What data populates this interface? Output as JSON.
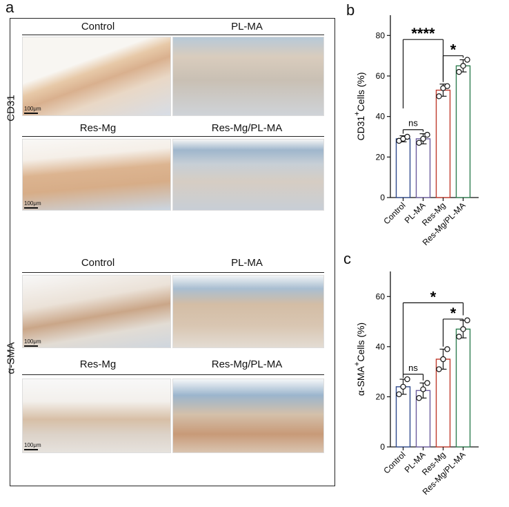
{
  "panels": {
    "a": "a",
    "b": "b",
    "c": "c"
  },
  "histology": {
    "rows": [
      {
        "stain": "CD31",
        "top_labels": [
          "Control",
          "PL-MA"
        ],
        "bottom_labels": [
          "Res-Mg",
          "Res-Mg/PL-MA"
        ]
      },
      {
        "stain": "α-SMA",
        "top_labels": [
          "Control",
          "PL-MA"
        ],
        "bottom_labels": [
          "Res-Mg",
          "Res-Mg/PL-MA"
        ]
      }
    ],
    "scale_bar": "100μm"
  },
  "colors": {
    "control": "#2f4a8c",
    "plma": "#6a5b9c",
    "resmg": "#c0392b",
    "resmg_plma": "#2e7d4f"
  },
  "chart_data": [
    {
      "type": "bar",
      "panel": "b",
      "categories": [
        "Control",
        "PL-MA",
        "Res-Mg",
        "Res-Mg/PL-MA"
      ],
      "values": [
        29,
        29,
        53,
        65
      ],
      "errors": [
        1.5,
        2.5,
        3,
        3
      ],
      "points": [
        [
          28,
          29,
          30
        ],
        [
          27,
          29,
          31
        ],
        [
          50,
          54,
          55
        ],
        [
          62,
          65,
          68
        ]
      ],
      "ylabel_main": "CD31",
      "ylabel_sup": "+",
      "ylabel_tail": "Cells (%)",
      "ylim": [
        0,
        90
      ],
      "yticks": [
        0,
        20,
        40,
        60,
        80
      ],
      "significance": [
        {
          "from": 0,
          "to": 1,
          "label": "ns"
        },
        {
          "from": 2,
          "to": 3,
          "label": "*"
        },
        {
          "from": 0,
          "to": 2,
          "label": "****"
        }
      ]
    },
    {
      "type": "bar",
      "panel": "c",
      "categories": [
        "Control",
        "PL-MA",
        "Res-Mg",
        "Res-Mg/PL-MA"
      ],
      "values": [
        24,
        22.5,
        35,
        47
      ],
      "errors": [
        3,
        3,
        4,
        3.5
      ],
      "points": [
        [
          21,
          24,
          27
        ],
        [
          19.5,
          23,
          25.5
        ],
        [
          31,
          35,
          39
        ],
        [
          44,
          47,
          50.5
        ]
      ],
      "ylabel_main": "α-SMA",
      "ylabel_sup": "+",
      "ylabel_tail": "Cells (%)",
      "ylim": [
        0,
        70
      ],
      "yticks": [
        0,
        20,
        40,
        60
      ],
      "significance": [
        {
          "from": 0,
          "to": 1,
          "label": "ns"
        },
        {
          "from": 2,
          "to": 3,
          "label": "*"
        },
        {
          "from": 0,
          "to": 3,
          "label": "*"
        }
      ]
    }
  ]
}
